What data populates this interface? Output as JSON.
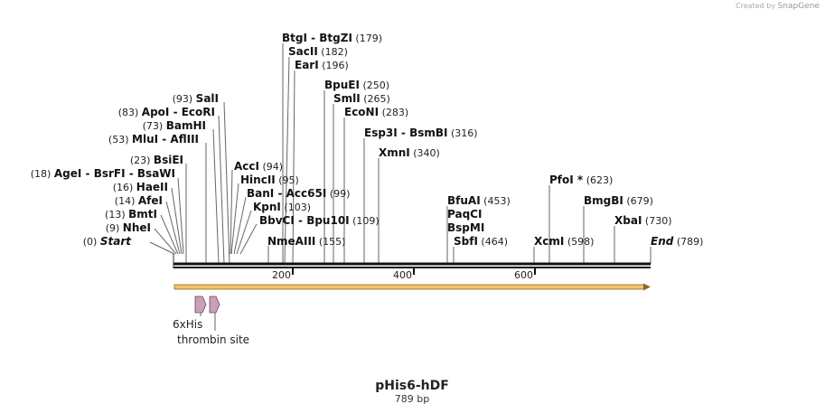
{
  "credit": {
    "prefix": "Created by",
    "brand": "SnapGene"
  },
  "plasmid": {
    "name": "pHis6-hDF",
    "length_label": "789 bp"
  },
  "colors": {
    "backbone": "#111111",
    "orf_fill": "#f6c46a",
    "orf_stroke": "#8a6a22",
    "feature_fill": "#c9a0b6",
    "feature_stroke": "#6b4660",
    "leader": "#666666"
  },
  "ruler": {
    "labels": [
      "200",
      "400",
      "600"
    ]
  },
  "sites": [
    {
      "id": "start",
      "pos": "(0)",
      "parts": [
        "Start"
      ],
      "italic": true
    },
    {
      "id": "nhei",
      "pos": "(9)",
      "parts": [
        "NheI"
      ]
    },
    {
      "id": "bmti",
      "pos": "(13)",
      "parts": [
        "BmtI"
      ]
    },
    {
      "id": "afei",
      "pos": "(14)",
      "parts": [
        "AfeI"
      ]
    },
    {
      "id": "haeii",
      "pos": "(16)",
      "parts": [
        "HaeII"
      ]
    },
    {
      "id": "agei",
      "pos": "(18)",
      "parts": [
        "AgeI",
        "BsrFI",
        "BsaWI"
      ]
    },
    {
      "id": "bsiei",
      "pos": "(23)",
      "parts": [
        "BsiEI"
      ]
    },
    {
      "id": "mlui",
      "pos": "(53)",
      "parts": [
        "MluI",
        "AflIII"
      ]
    },
    {
      "id": "bamhi",
      "pos": "(73)",
      "parts": [
        "BamHI"
      ]
    },
    {
      "id": "apoi",
      "pos": "(83)",
      "parts": [
        "ApoI",
        "EcoRI"
      ]
    },
    {
      "id": "sali",
      "pos": "(93)",
      "parts": [
        "SalI"
      ]
    },
    {
      "id": "acci",
      "pos": "(94)",
      "parts": [
        "AccI"
      ]
    },
    {
      "id": "hincii",
      "pos": "(95)",
      "parts": [
        "HincII"
      ]
    },
    {
      "id": "bani",
      "pos": "(99)",
      "parts": [
        "BanI",
        "Acc65I"
      ]
    },
    {
      "id": "kpni",
      "pos": "(103)",
      "parts": [
        "KpnI"
      ]
    },
    {
      "id": "bbvci",
      "pos": "(109)",
      "parts": [
        "BbvCI",
        "Bpu10I"
      ]
    },
    {
      "id": "nmeaiii",
      "pos": "(155)",
      "parts": [
        "NmeAIII"
      ]
    },
    {
      "id": "btgi",
      "pos": "(179)",
      "parts": [
        "BtgI",
        "BtgZI"
      ]
    },
    {
      "id": "sacii",
      "pos": "(182)",
      "parts": [
        "SacII"
      ]
    },
    {
      "id": "eari",
      "pos": "(196)",
      "parts": [
        "EarI"
      ]
    },
    {
      "id": "bpuei",
      "pos": "(250)",
      "parts": [
        "BpuEI"
      ]
    },
    {
      "id": "smli",
      "pos": "(265)",
      "parts": [
        "SmlI"
      ]
    },
    {
      "id": "econi",
      "pos": "(283)",
      "parts": [
        "EcoNI"
      ]
    },
    {
      "id": "esp3i",
      "pos": "(316)",
      "parts": [
        "Esp3I",
        "BsmBI"
      ]
    },
    {
      "id": "xmni",
      "pos": "(340)",
      "parts": [
        "XmnI"
      ]
    },
    {
      "id": "bfuai",
      "pos": "(453)",
      "parts": [
        "BfuAI"
      ]
    },
    {
      "id": "paqci",
      "pos": "",
      "parts": [
        "PaqCI"
      ]
    },
    {
      "id": "bspmi",
      "pos": "",
      "parts": [
        "BspMI"
      ]
    },
    {
      "id": "sbfi",
      "pos": "(464)",
      "parts": [
        "SbfI"
      ]
    },
    {
      "id": "xcmi",
      "pos": "(598)",
      "parts": [
        "XcmI"
      ]
    },
    {
      "id": "pfoi",
      "pos": "(623)",
      "parts": [
        "PfoI *"
      ]
    },
    {
      "id": "bmgbi",
      "pos": "(679)",
      "parts": [
        "BmgBI"
      ]
    },
    {
      "id": "xbai",
      "pos": "(730)",
      "parts": [
        "XbaI"
      ]
    },
    {
      "id": "end",
      "pos": "(789)",
      "parts": [
        "End"
      ],
      "italic": true
    }
  ],
  "features": [
    {
      "id": "his-tag",
      "label": "6xHis"
    },
    {
      "id": "thrombin",
      "label": "thrombin site"
    }
  ]
}
